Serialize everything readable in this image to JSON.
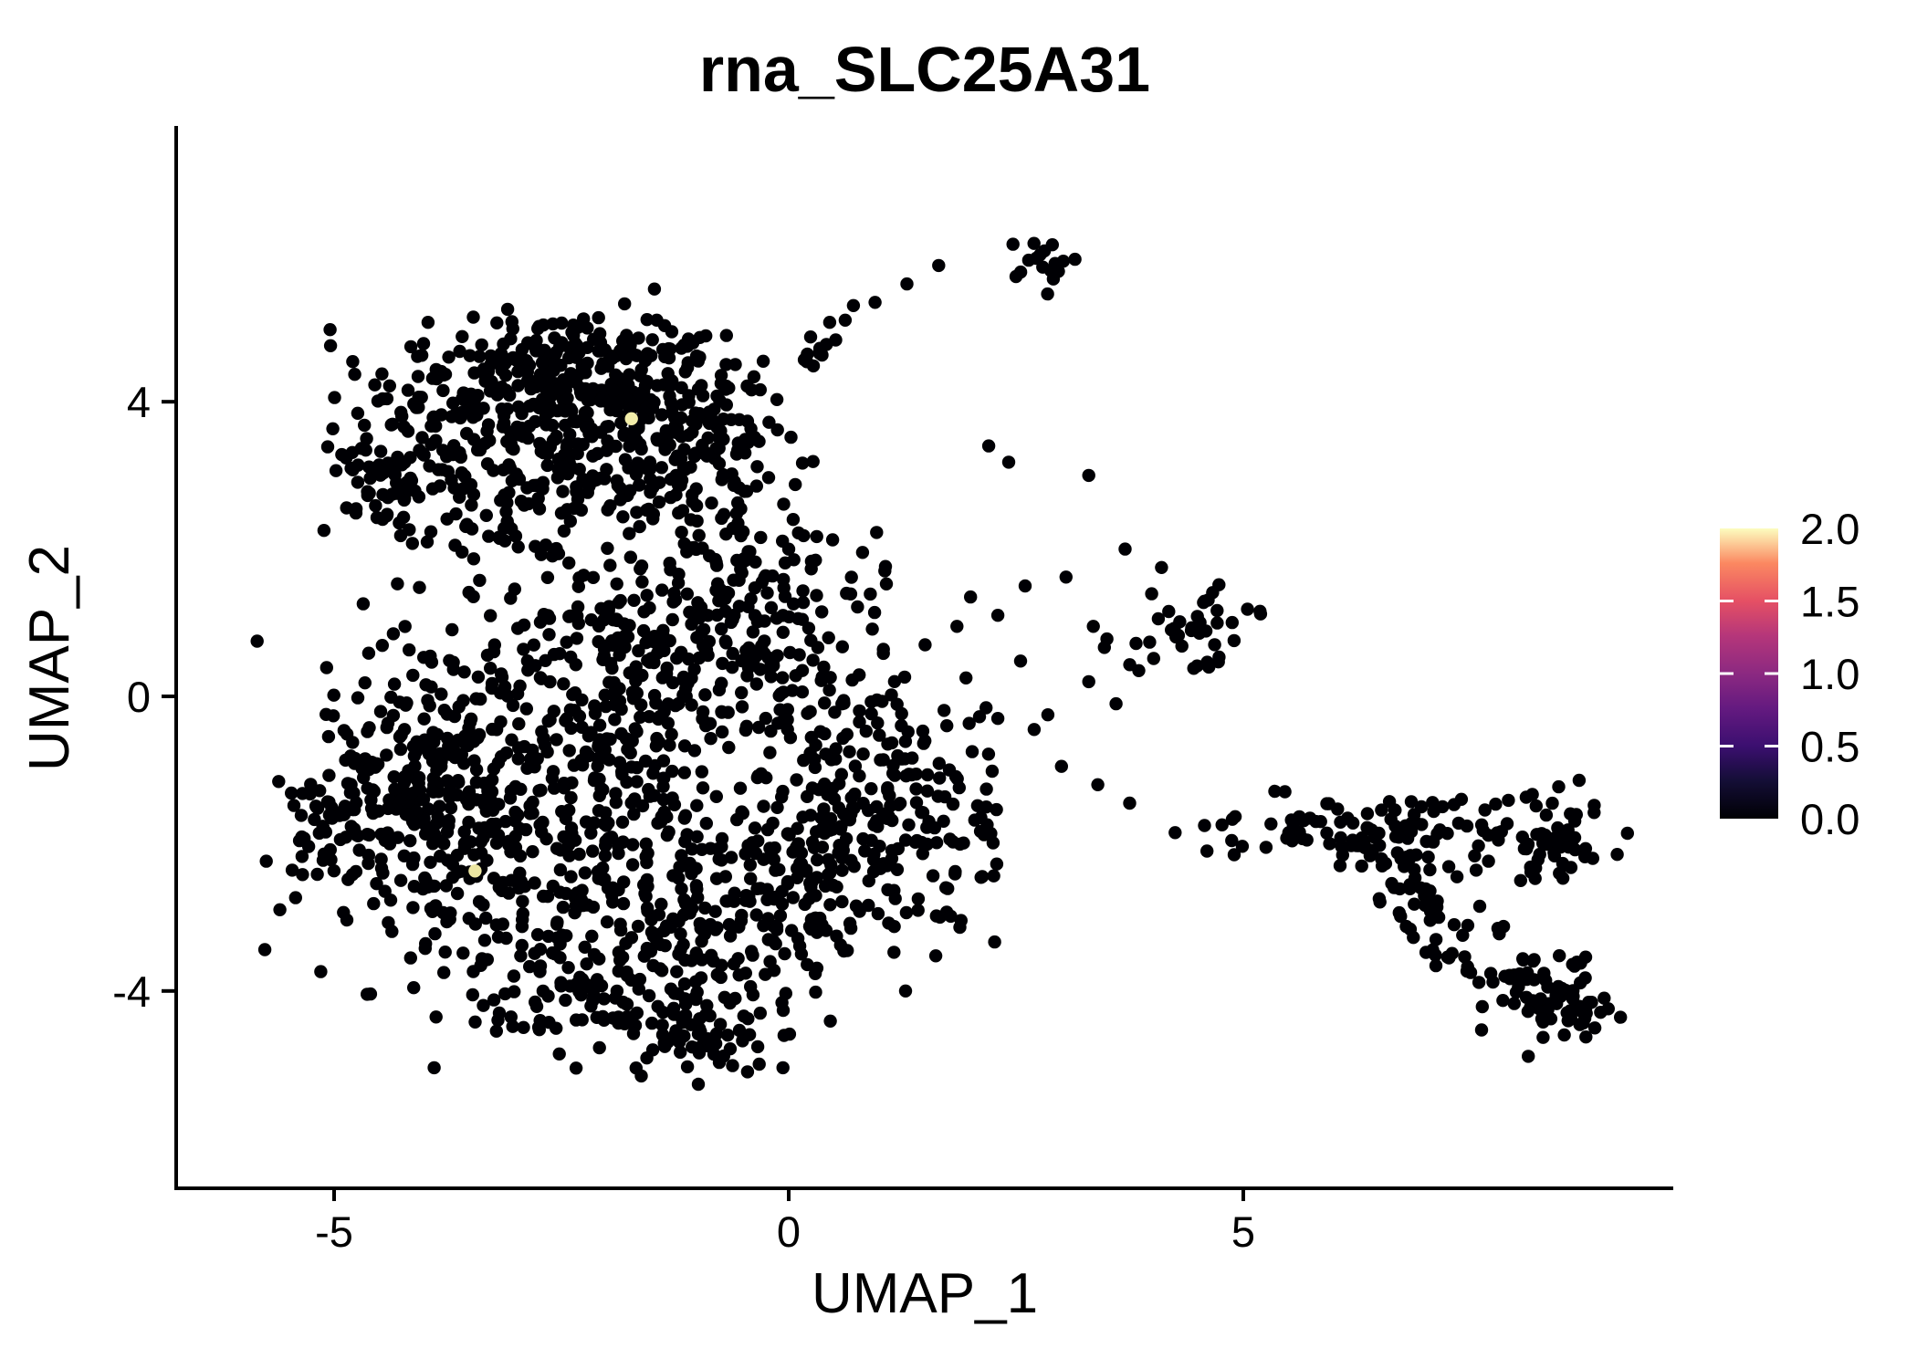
{
  "title": "rna_SLC25A31",
  "chart_data": {
    "type": "scatter",
    "title": "rna_SLC25A31",
    "xlabel": "UMAP_1",
    "ylabel": "UMAP_2",
    "xlim": [
      -6.74,
      9.72
    ],
    "ylim": [
      -6.68,
      7.72
    ],
    "x_ticks": [
      -5,
      0,
      5
    ],
    "y_ticks": [
      -4,
      0,
      4
    ],
    "grid": false,
    "legend_position": "right",
    "point_color": "#000004",
    "point_radius_px": 7.2,
    "seed": 11,
    "colorbar": {
      "range": [
        0,
        2
      ],
      "tick_values": [
        0.0,
        0.5,
        1.0,
        1.5,
        2.0
      ],
      "tick_labels": [
        "0.0",
        "0.5",
        "1.0",
        "1.5",
        "2.0"
      ],
      "colormap": "magma",
      "stops": [
        {
          "t": 0.0,
          "color": "#000004"
        },
        {
          "t": 0.13,
          "color": "#140e36"
        },
        {
          "t": 0.25,
          "color": "#3b0f70"
        },
        {
          "t": 0.38,
          "color": "#641a80"
        },
        {
          "t": 0.5,
          "color": "#8c2981"
        },
        {
          "t": 0.63,
          "color": "#b5367a"
        },
        {
          "t": 0.75,
          "color": "#e55064"
        },
        {
          "t": 0.88,
          "color": "#fb8861"
        },
        {
          "t": 1.0,
          "color": "#fcfdbf"
        }
      ]
    },
    "clusters": [
      {
        "name": "topleft-core-top",
        "cx": -2.4,
        "cy": 4.55,
        "sx": 0.75,
        "sy": 0.35,
        "n": 150
      },
      {
        "name": "topleft-core-left",
        "cx": -3.1,
        "cy": 3.9,
        "sx": 0.85,
        "sy": 0.45,
        "n": 150
      },
      {
        "name": "topleft-core-right",
        "cx": -1.6,
        "cy": 3.95,
        "sx": 0.6,
        "sy": 0.5,
        "n": 130
      },
      {
        "name": "topleft-arm",
        "cx": -4.3,
        "cy": 3.1,
        "sx": 0.4,
        "sy": 0.42,
        "n": 85
      },
      {
        "name": "topleft-lowband",
        "cx": -2.3,
        "cy": 3.1,
        "sx": 0.9,
        "sy": 0.4,
        "n": 110
      },
      {
        "name": "topleft-right-ext",
        "cx": -0.85,
        "cy": 3.0,
        "sx": 0.45,
        "sy": 0.7,
        "n": 80
      },
      {
        "name": "topleft-fringe",
        "cx": -2.8,
        "cy": 2.35,
        "sx": 1.0,
        "sy": 0.33,
        "n": 50
      },
      {
        "name": "bridge-left",
        "cx": -2.0,
        "cy": 1.05,
        "sx": 0.65,
        "sy": 0.55,
        "n": 50
      },
      {
        "name": "bridge-right",
        "cx": -0.45,
        "cy": 1.6,
        "sx": 0.55,
        "sy": 0.7,
        "n": 75
      },
      {
        "name": "main-left-lobe",
        "cx": -4.2,
        "cy": -1.3,
        "sx": 0.6,
        "sy": 1.05,
        "n": 225
      },
      {
        "name": "main-left-vertex",
        "cx": -5.0,
        "cy": -1.7,
        "sx": 0.22,
        "sy": 0.5,
        "n": 40
      },
      {
        "name": "main-midleft",
        "cx": -3.2,
        "cy": -1.6,
        "sx": 0.75,
        "sy": 1.1,
        "n": 200
      },
      {
        "name": "main-center",
        "cx": -2.0,
        "cy": -0.6,
        "sx": 0.9,
        "sy": 0.95,
        "n": 175
      },
      {
        "name": "main-center-low",
        "cx": -1.3,
        "cy": -2.6,
        "sx": 0.95,
        "sy": 0.85,
        "n": 185
      },
      {
        "name": "main-right-lobe",
        "cx": 1.15,
        "cy": -1.7,
        "sx": 0.7,
        "sy": 0.8,
        "n": 170
      },
      {
        "name": "main-upper-center",
        "cx": -1.2,
        "cy": 0.7,
        "sx": 0.8,
        "sy": 0.7,
        "n": 120
      },
      {
        "name": "main-bottom-band",
        "cx": -1.6,
        "cy": -3.9,
        "sx": 0.95,
        "sy": 0.45,
        "n": 130
      },
      {
        "name": "main-bottom-tip",
        "cx": -1.0,
        "cy": -4.6,
        "sx": 0.45,
        "sy": 0.28,
        "n": 55
      },
      {
        "name": "main-low-bridge",
        "cx": 0.0,
        "cy": -2.6,
        "sx": 0.6,
        "sy": 0.6,
        "n": 80
      },
      {
        "name": "main-upper-right",
        "cx": 0.3,
        "cy": -0.3,
        "sx": 0.6,
        "sy": 0.8,
        "n": 95
      },
      {
        "name": "midright-cluster",
        "cx": 4.45,
        "cy": 0.8,
        "sx": 0.32,
        "sy": 0.3,
        "n": 40
      },
      {
        "name": "top-mini-cluster",
        "cx": 2.78,
        "cy": 5.92,
        "sx": 0.2,
        "sy": 0.17,
        "n": 16
      },
      {
        "name": "right-band",
        "cx": 6.35,
        "cy": -1.8,
        "sx": 0.65,
        "sy": 0.22,
        "n": 80
      },
      {
        "name": "right-blob",
        "cx": 8.2,
        "cy": -1.85,
        "sx": 0.42,
        "sy": 0.3,
        "n": 65
      },
      {
        "name": "right-hook-bottom",
        "cx": 8.35,
        "cy": -4.0,
        "sx": 0.4,
        "sy": 0.3,
        "n": 70
      },
      {
        "name": "right-hook-tip",
        "cx": 8.75,
        "cy": -4.35,
        "sx": 0.22,
        "sy": 0.17,
        "n": 15
      }
    ],
    "segments": [
      {
        "name": "top-chain",
        "x1": 0.05,
        "y1": 4.3,
        "x2": 0.78,
        "y2": 5.28,
        "jitter": 0.1,
        "n": 14
      },
      {
        "name": "right-descender",
        "x1": 6.7,
        "y1": -2.15,
        "x2": 7.3,
        "y2": -3.6,
        "jitter": 0.18,
        "n": 50
      }
    ],
    "singles": [
      [
        -0.28,
        4.55
      ],
      [
        -0.13,
        4.03
      ],
      [
        0.95,
        5.35
      ],
      [
        1.3,
        5.6
      ],
      [
        1.65,
        5.85
      ],
      [
        2.5,
        5.7
      ],
      [
        2.2,
        3.4
      ],
      [
        2.42,
        3.18
      ],
      [
        3.3,
        3.0
      ],
      [
        3.7,
        2.0
      ],
      [
        3.35,
        0.95
      ],
      [
        3.5,
        0.78
      ],
      [
        3.85,
        0.35
      ],
      [
        3.3,
        0.2
      ],
      [
        3.6,
        -0.1
      ],
      [
        2.0,
        1.35
      ],
      [
        2.3,
        1.1
      ],
      [
        1.85,
        0.95
      ],
      [
        2.6,
        1.5
      ],
      [
        3.05,
        1.62
      ],
      [
        4.1,
        1.75
      ],
      [
        2.85,
        -0.25
      ],
      [
        1.5,
        0.7
      ],
      [
        1.95,
        0.25
      ],
      [
        2.3,
        -0.3
      ],
      [
        2.55,
        0.48
      ],
      [
        2.7,
        -0.45
      ],
      [
        3.0,
        -0.95
      ],
      [
        3.4,
        -1.2
      ],
      [
        3.75,
        -1.45
      ],
      [
        4.25,
        -1.85
      ],
      [
        4.6,
        -2.1
      ],
      [
        4.9,
        -2.15
      ],
      [
        5.25,
        -2.05
      ],
      [
        5.5,
        -1.85
      ],
      [
        5.7,
        -1.95
      ],
      [
        5.85,
        -1.7
      ],
      [
        5.55,
        -1.75
      ],
      [
        5.95,
        -2.0
      ],
      [
        7.35,
        -2.45
      ],
      [
        7.6,
        -2.85
      ],
      [
        7.8,
        -3.15
      ],
      [
        6.95,
        -2.6
      ],
      [
        7.15,
        -3.0
      ],
      [
        8.05,
        -2.5
      ],
      [
        7.5,
        -3.75
      ]
    ],
    "expressing_cells": [
      {
        "x": -1.73,
        "y": 3.77,
        "value": 2.0,
        "color": "#f2eda9"
      },
      {
        "x": -3.45,
        "y": -2.37,
        "value": 1.9,
        "color": "#ece6a2"
      }
    ]
  }
}
